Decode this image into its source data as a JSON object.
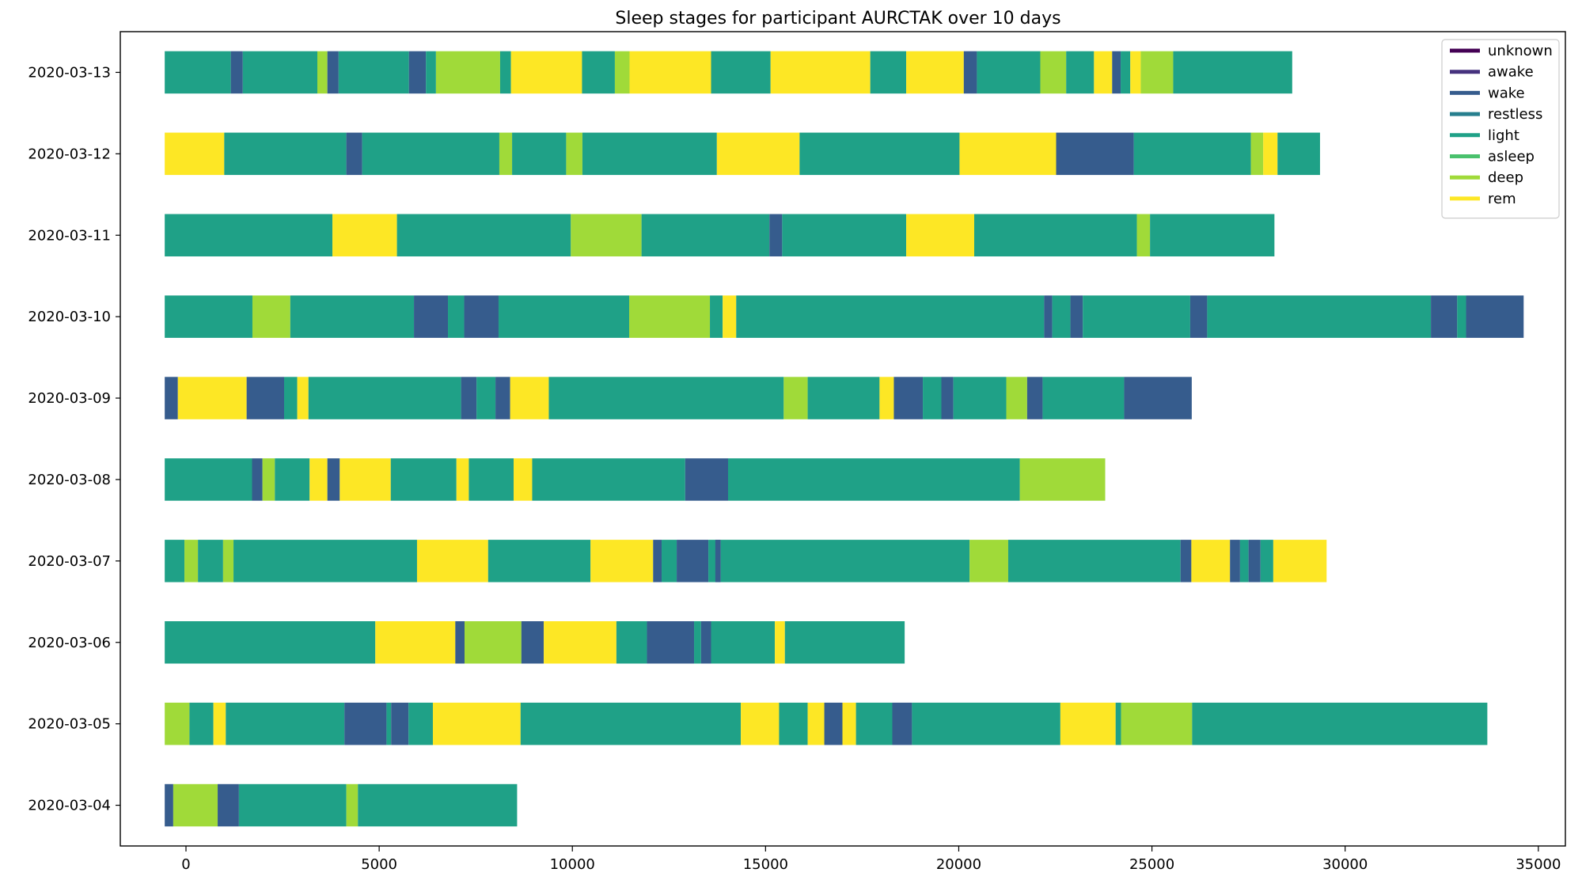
{
  "chart_data": {
    "type": "bar",
    "orientation": "horizontal",
    "stacked": true,
    "title": "Sleep stages for participant AURCTAK over 10 days",
    "xlabel": "",
    "ylabel": "",
    "xlim": [
      -1700,
      35700
    ],
    "xticks": [
      0,
      5000,
      10000,
      15000,
      20000,
      25000,
      30000,
      35000
    ],
    "grid": false,
    "legend_position": "top-right",
    "stages": [
      {
        "name": "unknown",
        "color": "#440154"
      },
      {
        "name": "awake",
        "color": "#46327e"
      },
      {
        "name": "wake",
        "color": "#365c8d"
      },
      {
        "name": "restless",
        "color": "#277f8e"
      },
      {
        "name": "light",
        "color": "#1fa187"
      },
      {
        "name": "asleep",
        "color": "#4ac16d"
      },
      {
        "name": "deep",
        "color": "#a0da39"
      },
      {
        "name": "rem",
        "color": "#fde725"
      }
    ],
    "rows": [
      {
        "date": "2020-03-13",
        "segments": [
          [
            "light",
            -550,
            1160
          ],
          [
            "wake",
            1160,
            1470
          ],
          [
            "light",
            1470,
            3400
          ],
          [
            "deep",
            3400,
            3660
          ],
          [
            "wake",
            3660,
            3950
          ],
          [
            "light",
            3950,
            5770
          ],
          [
            "wake",
            5770,
            6210
          ],
          [
            "light",
            6210,
            6470
          ],
          [
            "deep",
            6470,
            8130
          ],
          [
            "light",
            8130,
            8410
          ],
          [
            "rem",
            8410,
            10250
          ],
          [
            "light",
            10250,
            11100
          ],
          [
            "deep",
            11100,
            11480
          ],
          [
            "rem",
            11480,
            13590
          ],
          [
            "light",
            13590,
            15130
          ],
          [
            "rem",
            15130,
            17710
          ],
          [
            "light",
            17710,
            18640
          ],
          [
            "rem",
            18640,
            20130
          ],
          [
            "wake",
            20130,
            20470
          ],
          [
            "light",
            20470,
            22110
          ],
          [
            "deep",
            22110,
            22780
          ],
          [
            "light",
            22780,
            23500
          ],
          [
            "rem",
            23500,
            23970
          ],
          [
            "wake",
            23970,
            24190
          ],
          [
            "light",
            24190,
            24440
          ],
          [
            "rem",
            24440,
            24710
          ],
          [
            "deep",
            24710,
            25550
          ],
          [
            "light",
            25550,
            28630
          ]
        ]
      },
      {
        "date": "2020-03-12",
        "segments": [
          [
            "rem",
            -550,
            990
          ],
          [
            "light",
            990,
            4150
          ],
          [
            "wake",
            4150,
            4560
          ],
          [
            "light",
            4560,
            8110
          ],
          [
            "deep",
            8110,
            8440
          ],
          [
            "light",
            8440,
            9840
          ],
          [
            "deep",
            9840,
            10260
          ],
          [
            "light",
            10260,
            13740
          ],
          [
            "rem",
            13740,
            15880
          ],
          [
            "light",
            15880,
            20020
          ],
          [
            "rem",
            20020,
            22520
          ],
          [
            "wake",
            22520,
            24530
          ],
          [
            "light",
            24530,
            27560
          ],
          [
            "deep",
            27560,
            27880
          ],
          [
            "rem",
            27880,
            28250
          ],
          [
            "light",
            28250,
            29350
          ]
        ]
      },
      {
        "date": "2020-03-11",
        "segments": [
          [
            "light",
            -550,
            3790
          ],
          [
            "rem",
            3790,
            5460
          ],
          [
            "light",
            5460,
            9960
          ],
          [
            "deep",
            9960,
            11790
          ],
          [
            "light",
            11790,
            15100
          ],
          [
            "wake",
            15100,
            15430
          ],
          [
            "light",
            15430,
            18640
          ],
          [
            "rem",
            18640,
            20400
          ],
          [
            "light",
            20400,
            24610
          ],
          [
            "deep",
            24610,
            24950
          ],
          [
            "light",
            24950,
            28170
          ]
        ]
      },
      {
        "date": "2020-03-10",
        "segments": [
          [
            "light",
            -550,
            1720
          ],
          [
            "deep",
            1720,
            2700
          ],
          [
            "light",
            2700,
            5900
          ],
          [
            "wake",
            5900,
            6780
          ],
          [
            "light",
            6780,
            7200
          ],
          [
            "wake",
            7200,
            8090
          ],
          [
            "light",
            8090,
            11470
          ],
          [
            "deep",
            11470,
            13560
          ],
          [
            "light",
            13560,
            13890
          ],
          [
            "rem",
            13890,
            14240
          ],
          [
            "light",
            14240,
            22210
          ],
          [
            "wake",
            22210,
            22420
          ],
          [
            "light",
            22420,
            22890
          ],
          [
            "wake",
            22890,
            23210
          ],
          [
            "light",
            23210,
            25990
          ],
          [
            "wake",
            25990,
            26430
          ],
          [
            "light",
            26430,
            32220
          ],
          [
            "wake",
            32220,
            32900
          ],
          [
            "light",
            32900,
            33130
          ],
          [
            "wake",
            33130,
            34620
          ]
        ]
      },
      {
        "date": "2020-03-09",
        "segments": [
          [
            "wake",
            -550,
            -210
          ],
          [
            "rem",
            -210,
            1570
          ],
          [
            "wake",
            1570,
            2540
          ],
          [
            "light",
            2540,
            2880
          ],
          [
            "rem",
            2880,
            3170
          ],
          [
            "light",
            3170,
            7120
          ],
          [
            "wake",
            7120,
            7520
          ],
          [
            "light",
            7520,
            8010
          ],
          [
            "wake",
            8010,
            8390
          ],
          [
            "rem",
            8390,
            9390
          ],
          [
            "light",
            9390,
            15470
          ],
          [
            "deep",
            15470,
            16090
          ],
          [
            "light",
            16090,
            17950
          ],
          [
            "rem",
            17950,
            18320
          ],
          [
            "wake",
            18320,
            19070
          ],
          [
            "light",
            19070,
            19550
          ],
          [
            "wake",
            19550,
            19860
          ],
          [
            "light",
            19860,
            21230
          ],
          [
            "deep",
            21230,
            21770
          ],
          [
            "wake",
            21770,
            22170
          ],
          [
            "light",
            22170,
            24280
          ],
          [
            "wake",
            24280,
            26030
          ]
        ]
      },
      {
        "date": "2020-03-08",
        "segments": [
          [
            "light",
            -550,
            1710
          ],
          [
            "wake",
            1710,
            1980
          ],
          [
            "deep",
            1980,
            2300
          ],
          [
            "light",
            2300,
            3200
          ],
          [
            "rem",
            3200,
            3660
          ],
          [
            "wake",
            3660,
            3980
          ],
          [
            "rem",
            3980,
            5300
          ],
          [
            "light",
            5300,
            7000
          ],
          [
            "rem",
            7000,
            7320
          ],
          [
            "light",
            7320,
            8480
          ],
          [
            "rem",
            8480,
            8960
          ],
          [
            "light",
            8960,
            12920
          ],
          [
            "wake",
            12920,
            14030
          ],
          [
            "light",
            14030,
            21580
          ],
          [
            "deep",
            21580,
            23790
          ]
        ]
      },
      {
        "date": "2020-03-07",
        "segments": [
          [
            "light",
            -550,
            -40
          ],
          [
            "deep",
            -40,
            310
          ],
          [
            "light",
            310,
            960
          ],
          [
            "deep",
            960,
            1230
          ],
          [
            "light",
            1230,
            5980
          ],
          [
            "rem",
            5980,
            7820
          ],
          [
            "light",
            7820,
            10470
          ],
          [
            "rem",
            10470,
            12090
          ],
          [
            "wake",
            12090,
            12310
          ],
          [
            "light",
            12310,
            12700
          ],
          [
            "wake",
            12700,
            13520
          ],
          [
            "light",
            13520,
            13840
          ],
          [
            "wake",
            13840,
            13700
          ],
          [
            "light",
            13840,
            20280
          ],
          [
            "deep",
            20280,
            21280
          ],
          [
            "light",
            21280,
            25740
          ],
          [
            "wake",
            25740,
            26020
          ],
          [
            "rem",
            26020,
            27020
          ],
          [
            "wake",
            27020,
            27280
          ],
          [
            "light",
            27280,
            27500
          ],
          [
            "wake",
            27500,
            27810
          ],
          [
            "light",
            27810,
            28140
          ],
          [
            "rem",
            28140,
            29520
          ]
        ]
      },
      {
        "date": "2020-03-06",
        "segments": [
          [
            "light",
            -550,
            4900
          ],
          [
            "rem",
            4900,
            6970
          ],
          [
            "wake",
            6970,
            7210
          ],
          [
            "deep",
            7210,
            8680
          ],
          [
            "wake",
            8680,
            9260
          ],
          [
            "rem",
            9260,
            11140
          ],
          [
            "light",
            11140,
            11930
          ],
          [
            "wake",
            11930,
            13150
          ],
          [
            "light",
            13150,
            13330
          ],
          [
            "wake",
            13330,
            13590
          ],
          [
            "light",
            13590,
            15240
          ],
          [
            "rem",
            15240,
            15500
          ],
          [
            "light",
            15500,
            18600
          ]
        ]
      },
      {
        "date": "2020-03-05",
        "segments": [
          [
            "deep",
            -550,
            90
          ],
          [
            "light",
            90,
            710
          ],
          [
            "rem",
            710,
            1030
          ],
          [
            "light",
            1030,
            4100
          ],
          [
            "wake",
            4100,
            5190
          ],
          [
            "light",
            5190,
            5310
          ],
          [
            "wake",
            5310,
            5760
          ],
          [
            "light",
            5760,
            6390
          ],
          [
            "rem",
            6390,
            8660
          ],
          [
            "light",
            8660,
            14360
          ],
          [
            "rem",
            14360,
            15350
          ],
          [
            "light",
            15350,
            16090
          ],
          [
            "rem",
            16090,
            16520
          ],
          [
            "wake",
            16520,
            16990
          ],
          [
            "rem",
            16990,
            17340
          ],
          [
            "light",
            17340,
            18280
          ],
          [
            "wake",
            18280,
            18790
          ],
          [
            "light",
            18790,
            22630
          ],
          [
            "rem",
            22630,
            24060
          ],
          [
            "light",
            24060,
            24200
          ],
          [
            "deep",
            24200,
            26040
          ],
          [
            "light",
            26040,
            33680
          ]
        ]
      },
      {
        "date": "2020-03-04",
        "segments": [
          [
            "wake",
            -550,
            -330
          ],
          [
            "deep",
            -330,
            820
          ],
          [
            "wake",
            820,
            1370
          ],
          [
            "light",
            1370,
            4150
          ],
          [
            "deep",
            4150,
            4450
          ],
          [
            "light",
            4450,
            8570
          ]
        ]
      }
    ]
  }
}
